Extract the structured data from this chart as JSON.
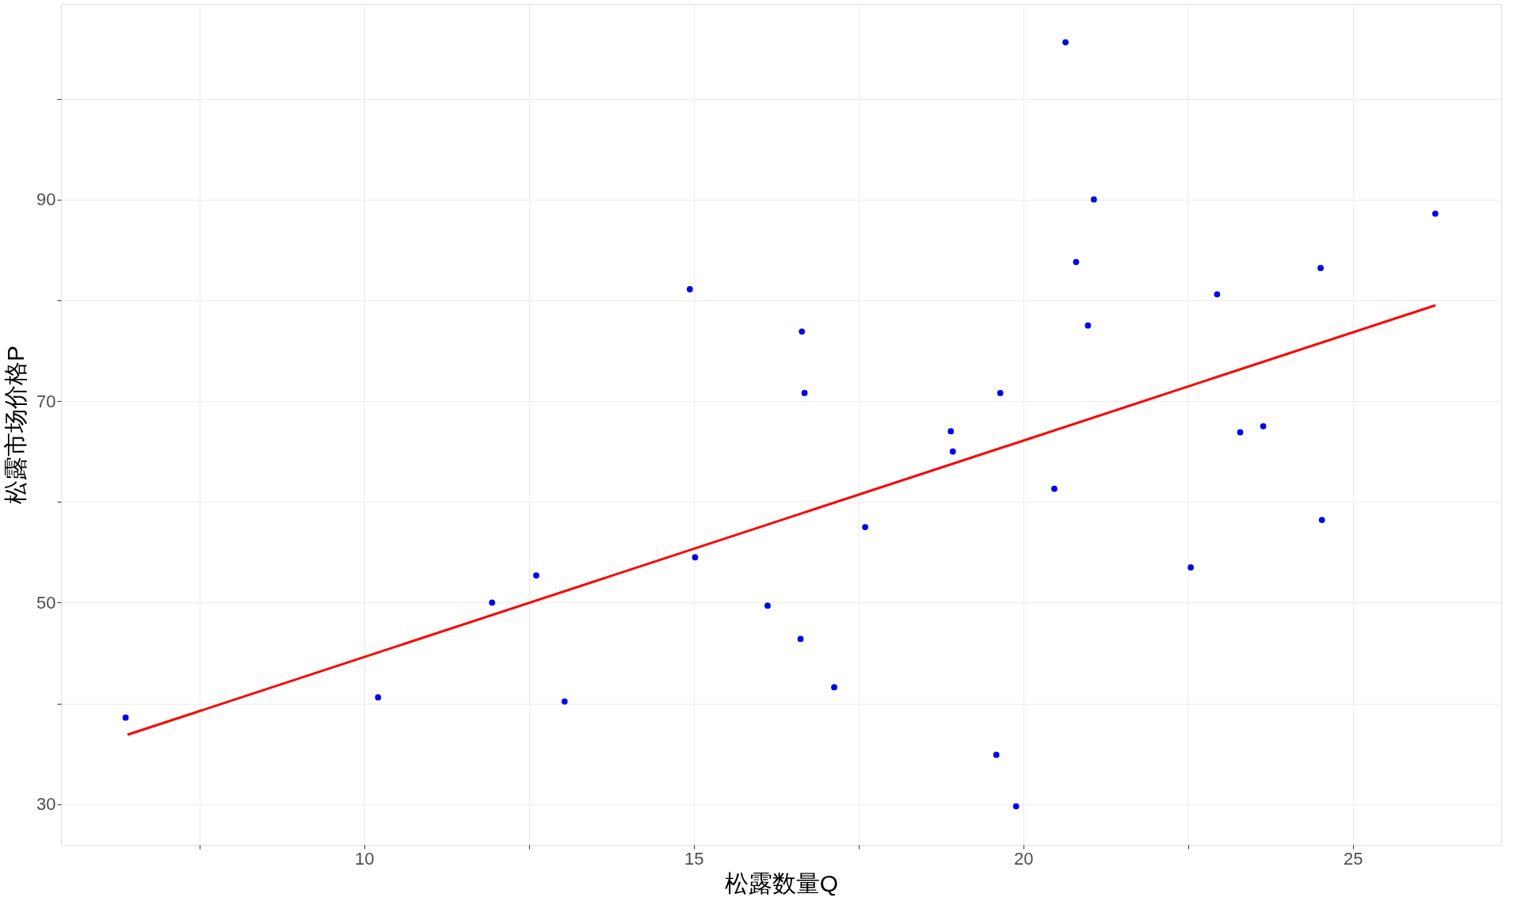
{
  "chart_data": {
    "type": "scatter",
    "xlabel": "松露数量Q",
    "ylabel": "松露市场价格P",
    "xlim": [
      5.4,
      27.25
    ],
    "ylim": [
      25.97,
      109.4
    ],
    "xticks": [
      {
        "value": 7.5,
        "label": null
      },
      10,
      {
        "value": 12.5,
        "label": null
      },
      15,
      {
        "value": 17.5,
        "label": null
      },
      20,
      {
        "value": 22.5,
        "label": null
      },
      25
    ],
    "yticks": [
      30,
      {
        "value": 40,
        "label": null
      },
      50,
      {
        "value": 60,
        "label": null
      },
      70,
      {
        "value": 80,
        "label": null
      },
      90,
      {
        "value": 100,
        "label": null
      }
    ],
    "grid": true,
    "legend": false,
    "series": [
      {
        "color": "#0000ff",
        "marker": "circle",
        "x": [
          6.38,
          10.21,
          11.94,
          12.61,
          13.04,
          14.94,
          15.02,
          16.12,
          16.62,
          16.64,
          16.68,
          17.13,
          17.6,
          18.9,
          18.93,
          19.59,
          19.65,
          19.89,
          20.47,
          20.64,
          20.8,
          20.98,
          21.07,
          22.54,
          22.94,
          23.29,
          23.64,
          24.51,
          24.53,
          26.25
        ],
        "values": [
          38.6,
          40.6,
          50.0,
          52.7,
          40.2,
          81.1,
          54.5,
          49.7,
          46.4,
          76.9,
          70.8,
          41.6,
          57.5,
          67.0,
          65.0,
          34.9,
          70.8,
          29.8,
          61.3,
          105.6,
          83.8,
          77.5,
          90.0,
          53.5,
          80.6,
          66.9,
          67.5,
          83.2,
          58.2,
          88.6
        ]
      },
      {
        "type": "line",
        "color": "#ff0000",
        "x": [
          6.41,
          26.25
        ],
        "values": [
          36.9,
          79.5
        ]
      }
    ]
  }
}
